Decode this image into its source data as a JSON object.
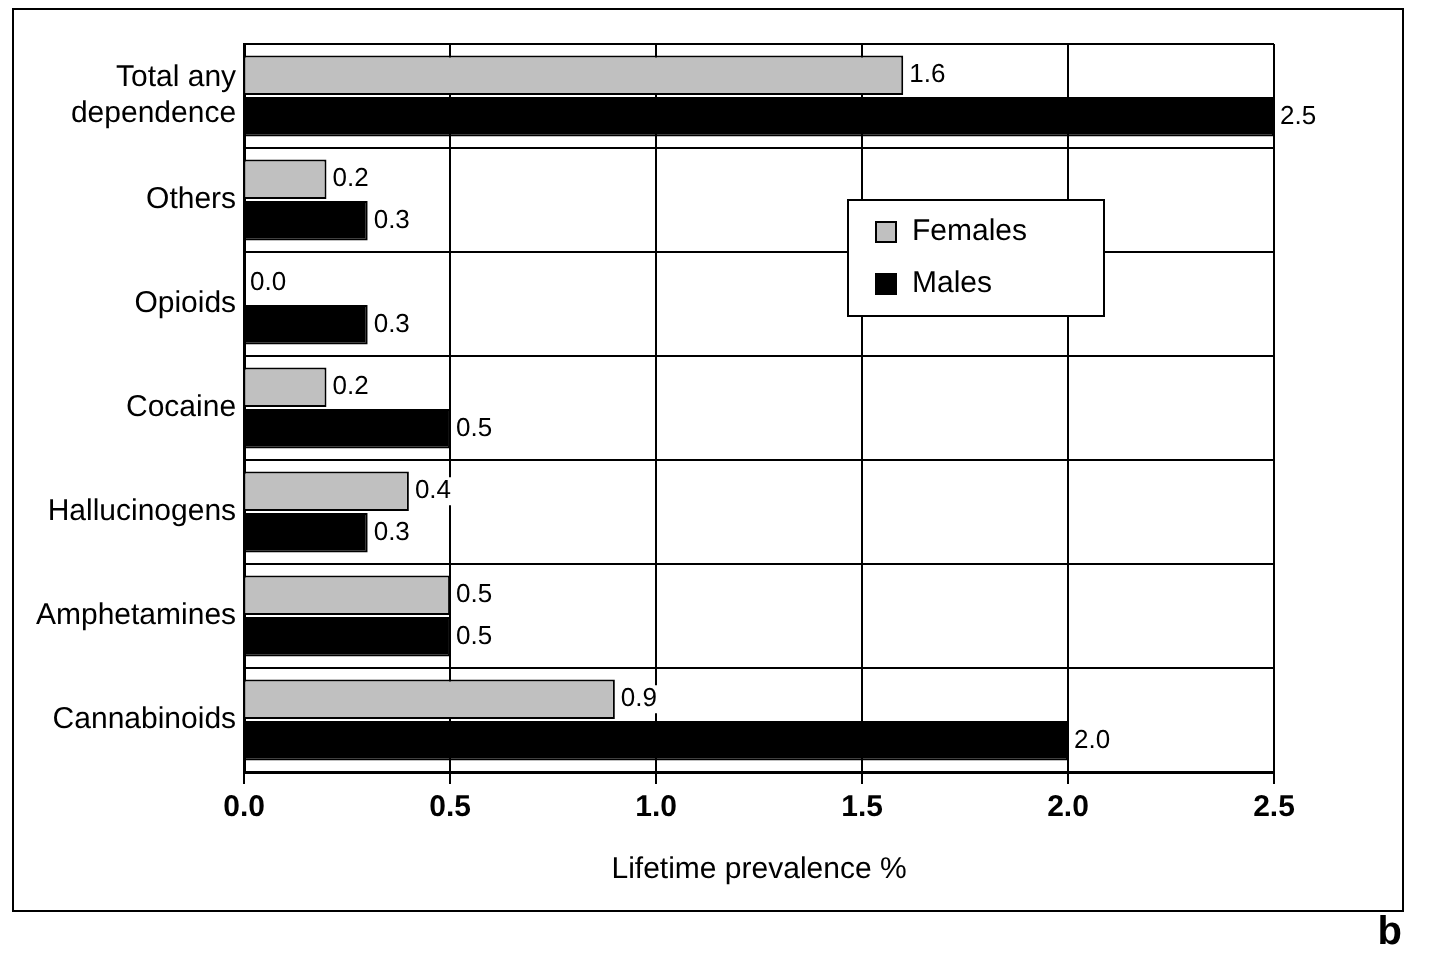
{
  "chart_data": {
    "type": "bar",
    "orientation": "horizontal",
    "xlabel": "Lifetime prevalence %",
    "categories": [
      "Total any dependence",
      "Others",
      "Opioids",
      "Cocaine",
      "Hallucinogens",
      "Amphetamines",
      "Cannabinoids"
    ],
    "series": [
      {
        "name": "Females",
        "color": "#c0c0c0",
        "values": [
          1.6,
          0.2,
          0,
          0.2,
          0.4,
          0.5,
          0.9
        ],
        "value_labels": [
          "1.6",
          "0.2",
          "0.0",
          "0.2",
          "0.4",
          "0.5",
          "0.9"
        ]
      },
      {
        "name": "Males",
        "color": "#000000",
        "values": [
          2.5,
          0.3,
          0.3,
          0.5,
          0.3,
          0.5,
          2.0
        ],
        "value_labels": [
          "2.5",
          "0.3",
          "0.3",
          "0.5",
          "0.3",
          "0.5",
          "2.0"
        ]
      }
    ],
    "xlim": [
      0,
      2.5
    ],
    "xticks": [
      {
        "value": 0,
        "label": "0.0"
      },
      {
        "value": 0.5,
        "label": "0.5"
      },
      {
        "value": 1,
        "label": "1.0"
      },
      {
        "value": 1.5,
        "label": "1.5"
      },
      {
        "value": 2,
        "label": "2.0"
      },
      {
        "value": 2.5,
        "label": "2.5"
      }
    ],
    "grid": true,
    "legend": "top right",
    "annotations": [
      "b"
    ]
  }
}
